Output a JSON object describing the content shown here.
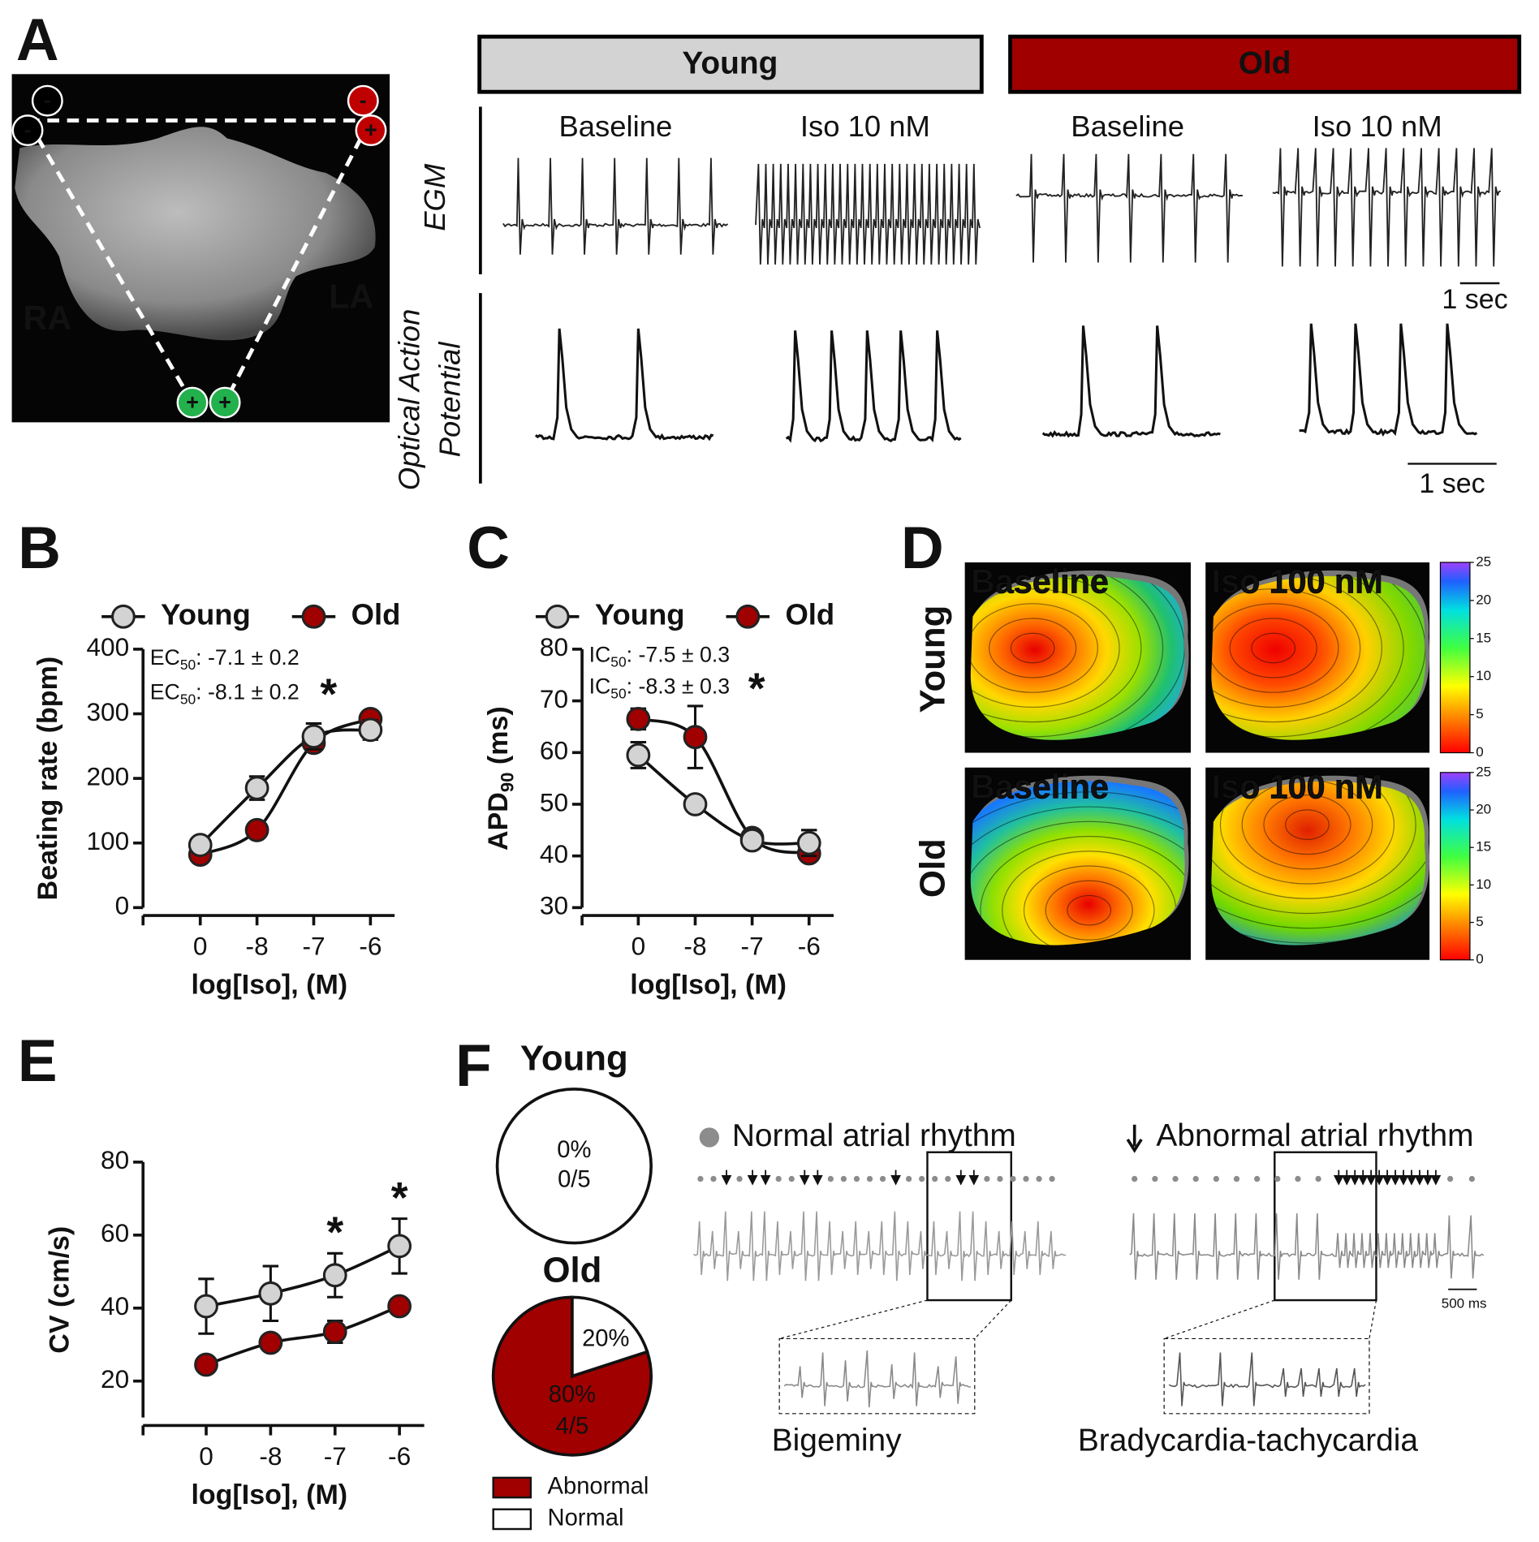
{
  "panel_labels": [
    "A",
    "B",
    "C",
    "D",
    "E",
    "F"
  ],
  "panel_a": {
    "image_labels": [
      "RA",
      "LA"
    ],
    "electrode_signs": [
      "-",
      "-",
      "-",
      "+",
      "+",
      "+"
    ],
    "groups": [
      "Young",
      "Old"
    ],
    "conditions": [
      "Baseline",
      "Iso 10 nM",
      "Baseline",
      "Iso 10 nM"
    ],
    "egm_label": "EGM",
    "oap_label": [
      "Optical Action",
      "Potential"
    ],
    "scale_bars": [
      "1 sec",
      "1 sec"
    ]
  },
  "chart_data": [
    {
      "type": "line",
      "categories": [
        "0",
        "-8",
        "-7",
        "-6"
      ],
      "x_label": "log[Iso], (M)",
      "y_label": "Beating rate (bpm)",
      "ylim": [
        0,
        400
      ],
      "yticks": [
        0,
        100,
        200,
        300,
        400
      ],
      "legend": "top",
      "series": [
        {
          "name": "Young",
          "color": "#d3d3d3",
          "values": [
            97,
            185,
            265,
            275
          ],
          "errors": [
            8,
            18,
            20,
            15
          ]
        },
        {
          "name": "Old",
          "color": "#a00000",
          "values": [
            82,
            120,
            255,
            292
          ],
          "errors": [
            5,
            5,
            8,
            5
          ]
        }
      ],
      "annotations": [
        {
          "text": "EC",
          "subscript": "50",
          "suffix": ": -7.1 ± 0.2"
        },
        {
          "text": "EC",
          "subscript": "50",
          "suffix": ": -8.1 ± 0.2",
          "mark": "*"
        }
      ]
    },
    {
      "type": "line",
      "categories": [
        "0",
        "-8",
        "-7",
        "-6"
      ],
      "x_label": "log[Iso], (M)",
      "y_label": {
        "text": "APD",
        "subscript": "90",
        "suffix": " (ms)"
      },
      "ylim": [
        30,
        80
      ],
      "yticks": [
        30,
        40,
        50,
        60,
        70,
        80
      ],
      "legend": "top",
      "series": [
        {
          "name": "Young",
          "color": "#d3d3d3",
          "values": [
            59.5,
            50,
            43,
            42.5
          ],
          "errors": [
            2.5,
            1,
            1.5,
            2.5
          ]
        },
        {
          "name": "Old",
          "color": "#a00000",
          "values": [
            66.5,
            63,
            43.5,
            40.5
          ],
          "errors": [
            2,
            6,
            1,
            1.5
          ]
        }
      ],
      "annotations": [
        {
          "text": "IC",
          "subscript": "50",
          "suffix": ": -7.5 ± 0.3"
        },
        {
          "text": "IC",
          "subscript": "50",
          "suffix": ": -8.3 ± 0.3",
          "mark": "*"
        }
      ]
    },
    {
      "type": "line",
      "categories": [
        "0",
        "-8",
        "-7",
        "-6"
      ],
      "x_label": "log[Iso], (M)",
      "y_label": "CV (cm/s)",
      "ylim": [
        10,
        80
      ],
      "yticks": [
        20,
        40,
        60,
        80
      ],
      "series": [
        {
          "name": "Young",
          "color": "#d3d3d3",
          "values": [
            40.5,
            44,
            49,
            57
          ],
          "errors": [
            7.5,
            7.5,
            6,
            7.5
          ]
        },
        {
          "name": "Old",
          "color": "#a00000",
          "values": [
            24.5,
            30.5,
            33.5,
            40.5
          ],
          "errors": [
            1,
            1,
            3,
            1
          ]
        }
      ],
      "significance": [
        {
          "category": "-7",
          "label": "*"
        },
        {
          "category": "-6",
          "label": "*"
        }
      ]
    },
    {
      "type": "pie",
      "title": "Young",
      "values": [
        0,
        100
      ],
      "colors": [
        "#a00000",
        "#ffffff"
      ],
      "value_labels": [
        "0%",
        null
      ],
      "count_labels": [
        "0/5",
        null
      ]
    },
    {
      "type": "pie",
      "title": "Old",
      "categories": [
        "Abnormal",
        "Normal"
      ],
      "values": [
        80,
        20
      ],
      "colors": [
        "#a00000",
        "#ffffff"
      ],
      "value_labels": [
        "80%",
        "20%"
      ],
      "count_labels": [
        "4/5",
        null
      ],
      "legend": "bottom"
    }
  ],
  "panel_d": {
    "row_labels": [
      "Young",
      "Old"
    ],
    "map_titles": [
      "Baseline",
      "Iso 100 nM",
      "Baseline",
      "Iso 100 nM"
    ],
    "colorbar": {
      "lim": [
        0,
        25
      ],
      "ticks": [
        0,
        5,
        10,
        15,
        20,
        25
      ]
    }
  },
  "panel_f": {
    "rhythm_legend": [
      "Normal atrial rhythm",
      "Abnormal atrial rhythm"
    ],
    "examples": [
      "Bigeminy",
      "Bradycardia-tachycardia"
    ],
    "scale_bar": "500 ms"
  }
}
